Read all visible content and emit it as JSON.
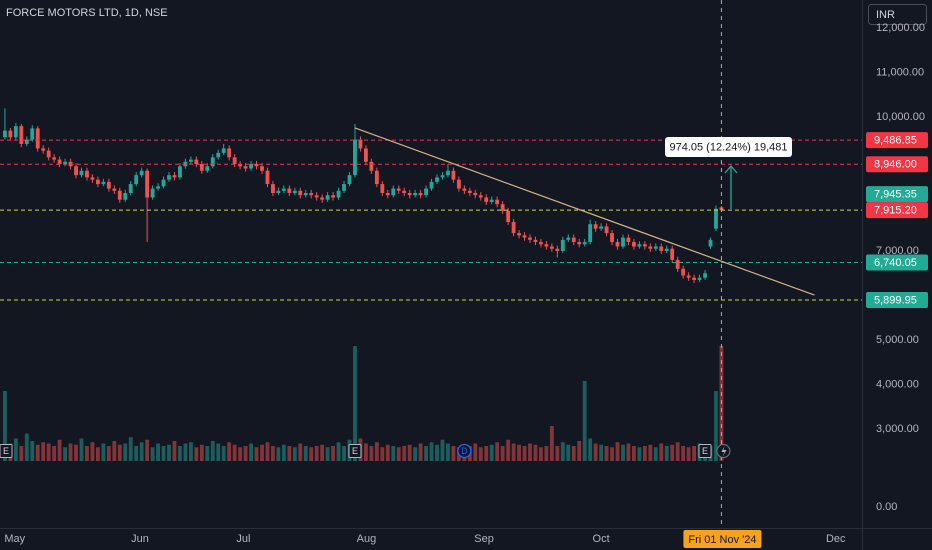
{
  "chart_data": {
    "type": "candlestick",
    "title": "FORCE MOTORS LTD, 1D, NSE",
    "currency": "INR",
    "up_color": "#26a69a",
    "down_color": "#ef5350",
    "grid": false,
    "xlim": [
      -0.9,
      156.7
    ],
    "ylim": [
      740,
      12630
    ],
    "xticks": [
      {
        "value": 1.8,
        "label": "May"
      },
      {
        "value": 24.7,
        "label": "Jun"
      },
      {
        "value": 43.6,
        "label": "Jul"
      },
      {
        "value": 66.1,
        "label": "Aug"
      },
      {
        "value": 87.6,
        "label": "Sep"
      },
      {
        "value": 109,
        "label": "Oct"
      },
      {
        "value": 151.9,
        "label": "Dec"
      }
    ],
    "yticks": [
      {
        "value": 12000,
        "label": "12,000.00"
      },
      {
        "value": 11000,
        "label": "11,000.00"
      },
      {
        "value": 10000,
        "label": "10,000.00"
      },
      {
        "value": 7000,
        "label": "7,000.00"
      },
      {
        "value": 5000,
        "label": "5,000.00"
      },
      {
        "value": 4000,
        "label": "4,000.00"
      },
      {
        "value": 3000,
        "label": "3,000.00"
      }
    ],
    "volume_yticks": [
      {
        "value": 0,
        "label": "0.00"
      }
    ],
    "ohlc": [
      [
        9550,
        10200,
        9500,
        9700
      ],
      [
        9700,
        9760,
        9480,
        9550
      ],
      [
        9550,
        9870,
        9500,
        9800
      ],
      [
        9800,
        9850,
        9330,
        9400
      ],
      [
        9400,
        9570,
        9350,
        9500
      ],
      [
        9500,
        9820,
        9450,
        9750
      ],
      [
        9750,
        9800,
        9230,
        9300
      ],
      [
        9300,
        9370,
        9180,
        9250
      ],
      [
        9250,
        9320,
        9030,
        9100
      ],
      [
        9100,
        9170,
        8980,
        9050
      ],
      [
        9050,
        9120,
        8880,
        8950
      ],
      [
        8950,
        9070,
        8900,
        9000
      ],
      [
        9000,
        9070,
        8830,
        8900
      ],
      [
        8900,
        8970,
        8630,
        8700
      ],
      [
        8700,
        8870,
        8650,
        8800
      ],
      [
        8800,
        8870,
        8580,
        8650
      ],
      [
        8650,
        8720,
        8530,
        8600
      ],
      [
        8600,
        8670,
        8430,
        8500
      ],
      [
        8500,
        8620,
        8450,
        8550
      ],
      [
        8550,
        8620,
        8330,
        8400
      ],
      [
        8400,
        8470,
        8280,
        8350
      ],
      [
        8350,
        8420,
        8080,
        8150
      ],
      [
        8150,
        8370,
        8100,
        8300
      ],
      [
        8300,
        8570,
        8250,
        8500
      ],
      [
        8500,
        8770,
        8450,
        8700
      ],
      [
        8700,
        8870,
        8650,
        8800
      ],
      [
        8800,
        8850,
        7200,
        8200
      ],
      [
        8200,
        8470,
        8150,
        8400
      ],
      [
        8400,
        8520,
        8350,
        8450
      ],
      [
        8450,
        8670,
        8400,
        8600
      ],
      [
        8600,
        8770,
        8550,
        8700
      ],
      [
        8700,
        8770,
        8580,
        8650
      ],
      [
        8650,
        8970,
        8600,
        8900
      ],
      [
        8900,
        9070,
        8850,
        9000
      ],
      [
        9000,
        9120,
        8950,
        9050
      ],
      [
        9050,
        9120,
        8880,
        8950
      ],
      [
        8950,
        9020,
        8730,
        8800
      ],
      [
        8800,
        8970,
        8750,
        8900
      ],
      [
        8900,
        9170,
        8850,
        9100
      ],
      [
        9100,
        9270,
        9050,
        9200
      ],
      [
        9200,
        9400,
        9150,
        9300
      ],
      [
        9300,
        9370,
        9030,
        9100
      ],
      [
        9100,
        9170,
        8880,
        8950
      ],
      [
        8950,
        9020,
        8830,
        8900
      ],
      [
        8900,
        8970,
        8780,
        8850
      ],
      [
        8850,
        9020,
        8800,
        8950
      ],
      [
        8950,
        9020,
        8830,
        8900
      ],
      [
        8900,
        8970,
        8730,
        8800
      ],
      [
        8800,
        8870,
        8430,
        8500
      ],
      [
        8500,
        8570,
        8230,
        8300
      ],
      [
        8300,
        8420,
        8250,
        8350
      ],
      [
        8350,
        8470,
        8300,
        8400
      ],
      [
        8400,
        8470,
        8230,
        8300
      ],
      [
        8300,
        8420,
        8250,
        8350
      ],
      [
        8350,
        8420,
        8180,
        8250
      ],
      [
        8250,
        8370,
        8200,
        8300
      ],
      [
        8300,
        8370,
        8180,
        8250
      ],
      [
        8250,
        8320,
        8130,
        8200
      ],
      [
        8200,
        8270,
        8080,
        8150
      ],
      [
        8150,
        8320,
        8100,
        8250
      ],
      [
        8250,
        8320,
        8130,
        8200
      ],
      [
        8200,
        8420,
        8150,
        8350
      ],
      [
        8350,
        8570,
        8300,
        8500
      ],
      [
        8500,
        8770,
        8450,
        8700
      ],
      [
        8700,
        9850,
        8650,
        9500
      ],
      [
        9500,
        9570,
        9230,
        9300
      ],
      [
        9300,
        9370,
        8930,
        9000
      ],
      [
        9000,
        9070,
        8730,
        8800
      ],
      [
        8800,
        8870,
        8430,
        8500
      ],
      [
        8500,
        8570,
        8230,
        8300
      ],
      [
        8300,
        8370,
        8180,
        8250
      ],
      [
        8250,
        8470,
        8200,
        8400
      ],
      [
        8400,
        8470,
        8280,
        8350
      ],
      [
        8350,
        8420,
        8230,
        8300
      ],
      [
        8300,
        8370,
        8180,
        8250
      ],
      [
        8250,
        8370,
        8200,
        8300
      ],
      [
        8300,
        8370,
        8180,
        8250
      ],
      [
        8250,
        8470,
        8200,
        8400
      ],
      [
        8400,
        8620,
        8350,
        8550
      ],
      [
        8550,
        8720,
        8500,
        8650
      ],
      [
        8650,
        8770,
        8600,
        8700
      ],
      [
        8700,
        8950,
        8650,
        8800
      ],
      [
        8800,
        8870,
        8530,
        8600
      ],
      [
        8600,
        8670,
        8330,
        8400
      ],
      [
        8400,
        8470,
        8280,
        8350
      ],
      [
        8350,
        8420,
        8230,
        8300
      ],
      [
        8300,
        8370,
        8180,
        8250
      ],
      [
        8250,
        8320,
        8130,
        8200
      ],
      [
        8200,
        8270,
        8030,
        8100
      ],
      [
        8100,
        8220,
        8050,
        8150
      ],
      [
        8150,
        8220,
        7980,
        8050
      ],
      [
        8050,
        8120,
        7830,
        7900
      ],
      [
        7900,
        7970,
        7580,
        7650
      ],
      [
        7650,
        7720,
        7330,
        7400
      ],
      [
        7400,
        7470,
        7280,
        7350
      ],
      [
        7350,
        7420,
        7230,
        7300
      ],
      [
        7300,
        7370,
        7180,
        7250
      ],
      [
        7250,
        7320,
        7130,
        7200
      ],
      [
        7200,
        7270,
        7080,
        7150
      ],
      [
        7150,
        7220,
        7030,
        7100
      ],
      [
        7100,
        7170,
        6980,
        7050
      ],
      [
        7050,
        7120,
        6850,
        7000
      ],
      [
        7000,
        7320,
        6950,
        7250
      ],
      [
        7250,
        7370,
        7200,
        7300
      ],
      [
        7300,
        7370,
        7130,
        7200
      ],
      [
        7200,
        7270,
        7080,
        7150
      ],
      [
        7150,
        7270,
        7100,
        7200
      ],
      [
        7200,
        7700,
        7150,
        7600
      ],
      [
        7600,
        7670,
        7430,
        7500
      ],
      [
        7500,
        7620,
        7450,
        7550
      ],
      [
        7550,
        7620,
        7330,
        7400
      ],
      [
        7400,
        7470,
        7130,
        7200
      ],
      [
        7200,
        7270,
        7030,
        7100
      ],
      [
        7100,
        7370,
        7050,
        7300
      ],
      [
        7300,
        7370,
        7130,
        7200
      ],
      [
        7200,
        7270,
        7030,
        7100
      ],
      [
        7100,
        7220,
        7050,
        7150
      ],
      [
        7150,
        7220,
        7030,
        7100
      ],
      [
        7100,
        7170,
        6980,
        7050
      ],
      [
        7050,
        7170,
        7000,
        7100
      ],
      [
        7100,
        7170,
        6930,
        7000
      ],
      [
        7000,
        7120,
        6950,
        7050
      ],
      [
        7050,
        7120,
        6730,
        6800
      ],
      [
        6800,
        6870,
        6530,
        6600
      ],
      [
        6600,
        6670,
        6380,
        6450
      ],
      [
        6450,
        6520,
        6330,
        6400
      ],
      [
        6400,
        6470,
        6280,
        6350
      ],
      [
        6350,
        6470,
        6300,
        6400
      ],
      [
        6400,
        6570,
        6350,
        6500
      ],
      [
        7100,
        7300,
        7050,
        7250
      ],
      [
        7500,
        8020,
        7450,
        7945.35
      ],
      [
        7980,
        8010,
        7880,
        7915.2
      ]
    ],
    "volume": [
      280,
      70,
      90,
      60,
      110,
      80,
      65,
      75,
      70,
      60,
      85,
      55,
      70,
      65,
      90,
      60,
      75,
      55,
      70,
      60,
      80,
      65,
      70,
      95,
      60,
      75,
      85,
      55,
      70,
      60,
      65,
      80,
      60,
      70,
      75,
      55,
      65,
      60,
      80,
      70,
      60,
      75,
      65,
      55,
      60,
      70,
      55,
      65,
      75,
      60,
      55,
      65,
      60,
      55,
      70,
      60,
      55,
      60,
      65,
      55,
      60,
      75,
      60,
      85,
      460,
      90,
      70,
      60,
      75,
      55,
      65,
      60,
      55,
      60,
      65,
      55,
      70,
      60,
      75,
      65,
      85,
      70,
      60,
      55,
      65,
      60,
      70,
      55,
      60,
      65,
      75,
      60,
      85,
      70,
      65,
      60,
      70,
      65,
      55,
      60,
      140,
      60,
      75,
      65,
      60,
      80,
      320,
      90,
      70,
      65,
      60,
      55,
      75,
      65,
      70,
      60,
      55,
      60,
      65,
      55,
      70,
      60,
      65,
      75,
      60,
      55,
      60,
      70,
      65,
      60,
      280,
      460
    ],
    "levels": [
      {
        "value": 9486.85,
        "label": "9,486.85",
        "color": "#f23645",
        "line_color": "#f23645"
      },
      {
        "value": 8946,
        "label": "8,946.00",
        "color": "#f23645",
        "line_color": "#f23645"
      },
      {
        "value": 7945.35,
        "label": "7,945.35",
        "color": "#22ab94"
      },
      {
        "value": 7915.2,
        "label": "7,915.20",
        "color": "#f23645",
        "line_color": "#c9d94a"
      },
      {
        "value": 6740.05,
        "label": "6,740.05",
        "color": "#22ab94",
        "line_color": "#22ab94"
      },
      {
        "value": 5899.95,
        "label": "5,899.95",
        "color": "#22ab94",
        "line_color": "#c9d94a"
      }
    ],
    "trendline": {
      "start": [
        64,
        9760
      ],
      "end": [
        148,
        6010
      ],
      "color": "#d4b483"
    },
    "measure": {
      "label": "974.05 (12.24%) 19,481",
      "color": "#26a69a"
    },
    "events": [
      {
        "label": "E",
        "index": 0
      },
      {
        "label": "E",
        "index": 64
      },
      {
        "label": "D",
        "index": 84
      },
      {
        "label": "E",
        "index": 128
      }
    ],
    "crosshair": {
      "index": 131,
      "label": "Fri 01 Nov '24",
      "color": "#f7a21b"
    }
  }
}
